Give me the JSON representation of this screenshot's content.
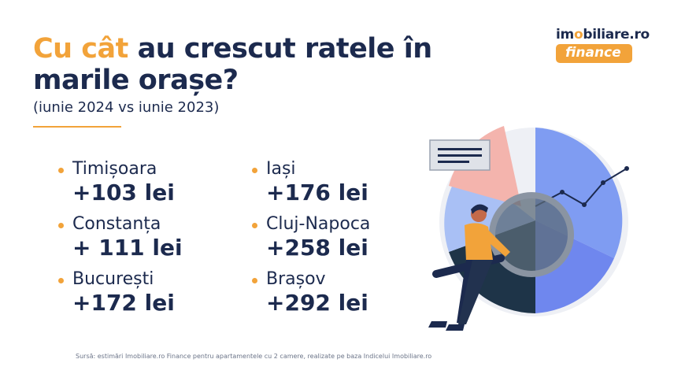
{
  "header": {
    "title_accent": "Cu cât",
    "title_rest": " au crescut ratele în marile orașe?",
    "subtitle": "(iunie 2024 vs iunie 2023)"
  },
  "logo": {
    "prefix": "im",
    "dot": "o",
    "suffix": "biliare.ro",
    "badge": "finance"
  },
  "cities": [
    {
      "name": "Timișoara",
      "amount": "+103 lei"
    },
    {
      "name": "Iași",
      "amount": "+176 lei"
    },
    {
      "name": "Constanța",
      "amount": "+ 111 lei"
    },
    {
      "name": "Cluj-Napoca",
      "amount": "+258 lei"
    },
    {
      "name": "București",
      "amount": "+172 lei"
    },
    {
      "name": "Brașov",
      "amount": "+292 lei"
    }
  ],
  "source": "Sursă: estimări Imobiliare.ro Finance pentru apartamentele cu 2 camere, realizate pe baza Indicelui Imobiliare.ro",
  "colors": {
    "accent": "#f2a33a",
    "navy": "#1c2a4e",
    "blue": "#7f9cf2",
    "blue_light": "#a9c0f5",
    "pink": "#f4b4ad",
    "dark_slice": "#1e3448",
    "gray_slice": "#5b6b78"
  },
  "illustration": "man-with-magnifying-glass-and-pie-chart"
}
